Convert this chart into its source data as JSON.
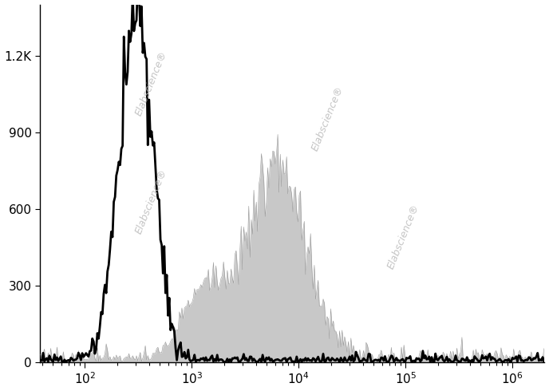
{
  "xlim_log": [
    1.58,
    6.3
  ],
  "ylim": [
    0,
    1400
  ],
  "yticks": [
    0,
    300,
    600,
    900,
    1200
  ],
  "ytick_labels": [
    "0",
    "300",
    "600",
    "900",
    "1.2K"
  ],
  "background_color": "#ffffff",
  "watermark_text": "Elabscience®",
  "watermark_color": "#bbbbbb",
  "isotype_color": "#000000",
  "antibody_color": "#c8c8c8",
  "isotype_linewidth": 2.0,
  "isotype_peak_log": 2.48,
  "isotype_log_std": 0.16,
  "isotype_peak_height": 1350,
  "antibody_peak_log": 3.78,
  "antibody_log_std": 0.28,
  "antibody_peak_height": 750,
  "antibody_shoulder_log": 3.1,
  "antibody_shoulder_std": 0.18,
  "antibody_shoulder_height": 260,
  "noise_level": 12,
  "nbins": 400,
  "seed": 77
}
